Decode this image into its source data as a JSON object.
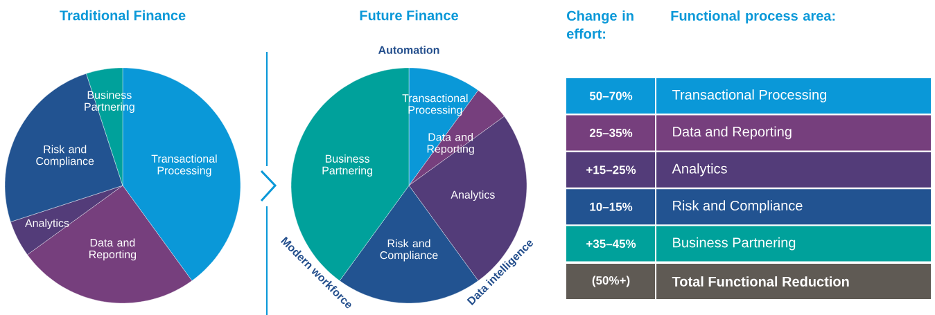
{
  "chart_data": [
    {
      "type": "pie",
      "title": "Traditional Finance",
      "categories": [
        "Transactional Processing",
        "Data and Reporting",
        "Analytics",
        "Risk and Compliance",
        "Business Partnering"
      ],
      "values": [
        40,
        25,
        5,
        25,
        5
      ],
      "colors": [
        "#0a98d8",
        "#763f7d",
        "#533c79",
        "#225391",
        "#00a19b"
      ]
    },
    {
      "type": "pie",
      "title": "Future Finance",
      "categories": [
        "Transactional Processing",
        "Data and Reporting",
        "Analytics",
        "Risk and Compliance",
        "Business Partnering"
      ],
      "values": [
        10,
        5,
        25,
        20,
        40
      ],
      "colors": [
        "#0a98d8",
        "#763f7d",
        "#533c79",
        "#225391",
        "#00a19b"
      ],
      "annotations": [
        "Automation",
        "Modern workforce",
        "Data intelligence"
      ]
    },
    {
      "type": "other",
      "annotations": [
        "Change in effort:",
        "Functional process area:"
      ],
      "categories": [
        "Transactional Processing",
        "Data and Reporting",
        "Analytics",
        "Risk and Compliance",
        "Business Partnering",
        "Total Functional Reduction"
      ],
      "value_labels": [
        "50–70%",
        "25–35%",
        "+15–25%",
        "10–15%",
        "+35–45%",
        "(50%+)"
      ],
      "colors": [
        "#0a98d8",
        "#763f7d",
        "#533c79",
        "#225391",
        "#00a19b",
        "#5f5a54"
      ]
    }
  ]
}
